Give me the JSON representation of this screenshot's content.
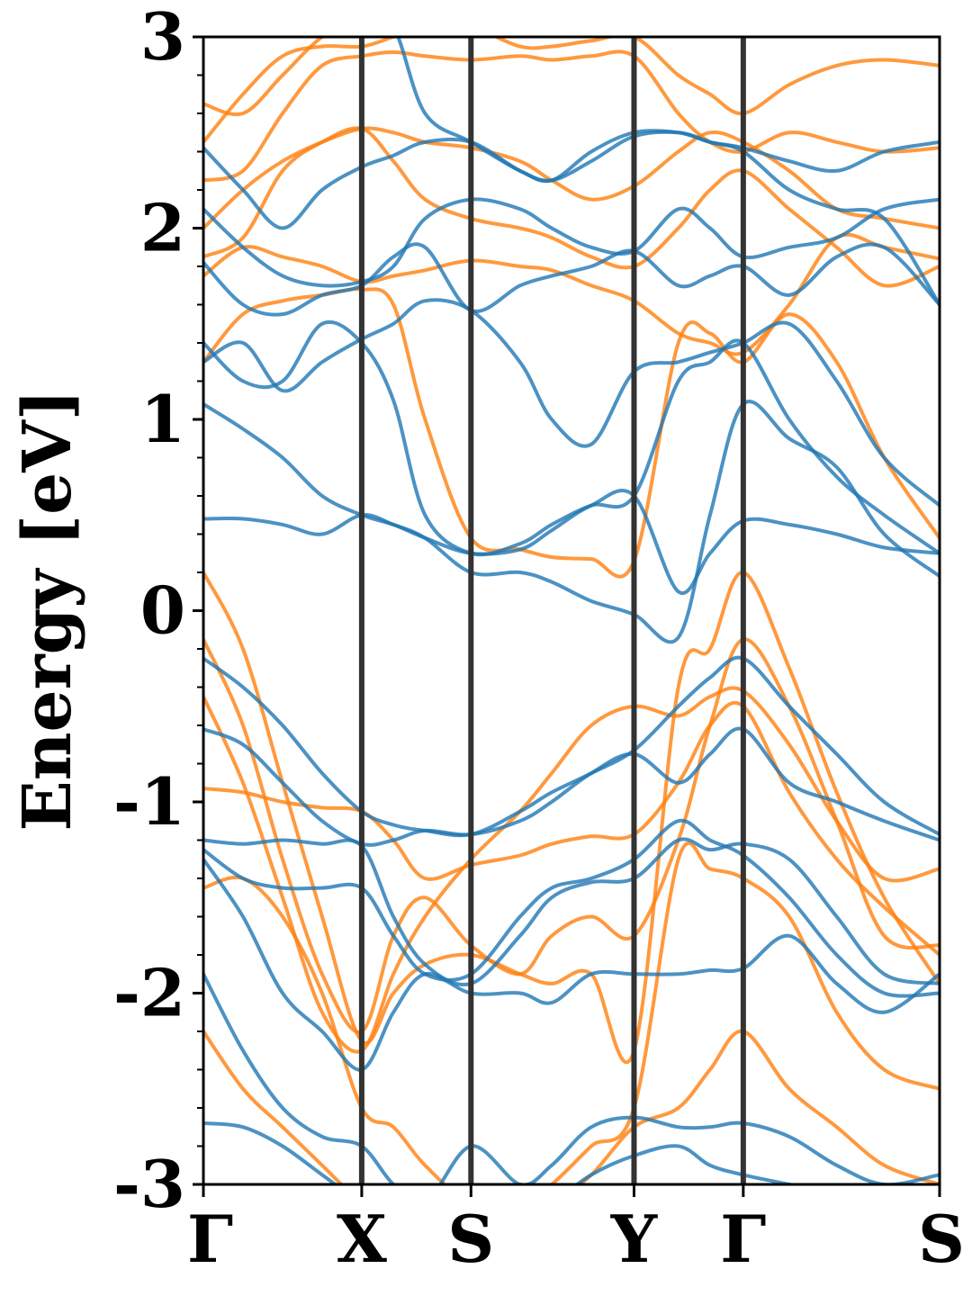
{
  "chart_data": {
    "type": "line",
    "title": "",
    "xlabel": "",
    "ylabel": "Energy [eV]",
    "ylim": [
      -3,
      3
    ],
    "y_ticks": [
      "-3",
      "-2",
      "-1",
      "0",
      "1",
      "2",
      "3"
    ],
    "y_minor_step": 0.2,
    "k_points": [
      {
        "label": "Γ",
        "x": 0.0
      },
      {
        "label": "X",
        "x": 1.0
      },
      {
        "label": "S",
        "x": 1.69
      },
      {
        "label": "Y",
        "x": 2.72
      },
      {
        "label": "Γ",
        "x": 3.41
      },
      {
        "label": "S",
        "x": 4.65
      }
    ],
    "grid": false,
    "legend": "none",
    "colors": {
      "spin_up": "#1f77b4",
      "spin_down": "#ff7f0e",
      "kline": "#333333"
    },
    "series": [
      {
        "color": "#ff7f0e",
        "x": [
          0,
          0.25,
          0.5,
          0.75,
          1.0,
          1.2,
          1.4,
          1.69,
          2.0,
          2.2,
          2.45,
          2.72,
          3.0,
          3.2,
          3.41,
          3.7,
          4.0,
          4.3,
          4.65
        ],
        "y": [
          0.2,
          -0.2,
          -0.9,
          -1.6,
          -2.25,
          -2.0,
          -1.85,
          -1.8,
          -1.9,
          -1.95,
          -1.9,
          -2.3,
          -0.4,
          -0.2,
          0.2,
          -0.3,
          -0.95,
          -1.5,
          -1.95
        ]
      },
      {
        "color": "#ff7f0e",
        "x": [
          0,
          0.25,
          0.5,
          0.75,
          1.0,
          1.2,
          1.4,
          1.69,
          2.0,
          2.2,
          2.45,
          2.72,
          3.0,
          3.2,
          3.41,
          3.7,
          4.0,
          4.3,
          4.65
        ],
        "y": [
          -0.15,
          -0.6,
          -1.3,
          -1.9,
          -2.2,
          -1.7,
          -1.5,
          -1.75,
          -1.9,
          -1.7,
          -1.6,
          -1.7,
          -1.2,
          -0.6,
          -0.15,
          -0.5,
          -1.1,
          -1.7,
          -1.75
        ]
      },
      {
        "color": "#ff7f0e",
        "x": [
          0,
          0.25,
          0.5,
          0.75,
          1.0,
          1.2,
          1.4,
          1.69,
          2.0,
          2.2,
          2.45,
          2.72,
          3.0,
          3.2,
          3.41,
          3.7,
          4.0,
          4.3,
          4.65
        ],
        "y": [
          -0.45,
          -0.9,
          -1.5,
          -2.1,
          -2.3,
          -1.9,
          -1.6,
          -1.3,
          -1.05,
          -0.85,
          -0.6,
          -0.5,
          -0.55,
          -0.45,
          -0.42,
          -0.7,
          -1.1,
          -1.4,
          -1.35
        ]
      },
      {
        "color": "#ff7f0e",
        "x": [
          0,
          0.25,
          0.5,
          0.75,
          1.0,
          1.2,
          1.4,
          1.69,
          2.0,
          2.2,
          2.45,
          2.72,
          3.0,
          3.2,
          3.41,
          3.7,
          4.0,
          4.3,
          4.65
        ],
        "y": [
          -0.93,
          -0.95,
          -1.0,
          -1.03,
          -1.05,
          -1.2,
          -1.4,
          -1.33,
          -1.28,
          -1.22,
          -1.18,
          -1.17,
          -0.9,
          -0.6,
          -0.5,
          -0.95,
          -1.3,
          -1.55,
          -1.8
        ]
      },
      {
        "color": "#ff7f0e",
        "x": [
          0,
          0.25,
          0.5,
          0.75,
          1.0,
          1.2,
          1.4,
          1.69,
          2.0,
          2.2,
          2.45,
          2.72,
          3.0,
          3.2,
          3.41,
          3.7,
          4.0,
          4.3,
          4.65
        ],
        "y": [
          -1.45,
          -1.4,
          -1.6,
          -2.0,
          -2.6,
          -2.7,
          -2.9,
          -3.1,
          -3.1,
          -3.0,
          -2.8,
          -2.6,
          -1.3,
          -1.35,
          -1.4,
          -1.6,
          -2.1,
          -2.4,
          -2.5
        ]
      },
      {
        "color": "#ff7f0e",
        "x": [
          0,
          0.25,
          0.5,
          0.75,
          1.0,
          1.2,
          1.4,
          1.69,
          2.0,
          2.2,
          2.45,
          2.72,
          3.0,
          3.2,
          3.41,
          3.7,
          4.0,
          4.3,
          4.65
        ],
        "y": [
          -2.2,
          -2.5,
          -2.7,
          -2.9,
          -3.1,
          -3.2,
          -3.3,
          -3.3,
          -3.2,
          -3.1,
          -2.95,
          -2.7,
          -2.6,
          -2.4,
          -2.2,
          -2.5,
          -2.7,
          -2.9,
          -3.0
        ]
      },
      {
        "color": "#ff7f0e",
        "x": [
          0,
          0.25,
          0.5,
          0.75,
          1.0,
          1.2,
          1.4,
          1.69,
          2.0,
          2.2,
          2.45,
          2.72,
          3.0,
          3.2,
          3.41,
          3.7,
          4.0,
          4.3,
          4.65
        ],
        "y": [
          1.3,
          1.55,
          1.62,
          1.65,
          1.68,
          1.6,
          1.0,
          0.38,
          0.32,
          0.28,
          0.27,
          0.26,
          1.4,
          1.45,
          1.3,
          1.55,
          1.3,
          0.8,
          0.38
        ]
      },
      {
        "color": "#ff7f0e",
        "x": [
          0,
          0.25,
          0.5,
          0.75,
          1.0,
          1.2,
          1.4,
          1.69,
          2.0,
          2.2,
          2.45,
          2.72,
          3.0,
          3.2,
          3.41,
          3.7,
          4.0,
          4.3,
          4.65
        ],
        "y": [
          1.75,
          1.9,
          1.85,
          1.8,
          1.72,
          1.75,
          1.78,
          1.83,
          1.8,
          1.78,
          1.7,
          1.62,
          1.45,
          1.4,
          1.35,
          1.6,
          1.95,
          1.9,
          1.84
        ]
      },
      {
        "color": "#ff7f0e",
        "x": [
          0,
          0.25,
          0.5,
          0.75,
          1.0,
          1.2,
          1.4,
          1.69,
          2.0,
          2.2,
          2.45,
          2.72,
          3.0,
          3.2,
          3.41,
          3.7,
          4.0,
          4.3,
          4.65
        ],
        "y": [
          1.85,
          1.95,
          2.3,
          2.45,
          2.52,
          2.35,
          2.15,
          2.05,
          2.0,
          1.95,
          1.85,
          1.8,
          2.0,
          2.2,
          2.3,
          2.1,
          1.9,
          1.7,
          1.8
        ]
      },
      {
        "color": "#ff7f0e",
        "x": [
          0,
          0.25,
          0.5,
          0.75,
          1.0,
          1.2,
          1.4,
          1.69,
          2.0,
          2.2,
          2.45,
          2.72,
          3.0,
          3.2,
          3.41,
          3.7,
          4.0,
          4.3,
          4.65
        ],
        "y": [
          2.0,
          2.2,
          2.35,
          2.45,
          2.52,
          2.5,
          2.45,
          2.42,
          2.35,
          2.25,
          2.15,
          2.22,
          2.4,
          2.5,
          2.45,
          2.3,
          2.1,
          2.05,
          2.0
        ]
      },
      {
        "color": "#ff7f0e",
        "x": [
          0,
          0.25,
          0.5,
          0.75,
          1.0,
          1.2,
          1.4,
          1.69,
          2.0,
          2.2,
          2.45,
          2.72,
          3.0,
          3.2,
          3.41,
          3.7,
          4.0,
          4.3,
          4.65
        ],
        "y": [
          2.25,
          2.3,
          2.6,
          2.85,
          2.9,
          2.92,
          2.9,
          2.88,
          2.9,
          2.88,
          2.9,
          2.9,
          2.6,
          2.45,
          2.4,
          2.5,
          2.45,
          2.4,
          2.42
        ]
      },
      {
        "color": "#ff7f0e",
        "x": [
          0,
          0.25,
          0.5,
          0.75,
          1.0,
          1.2,
          1.4,
          1.69,
          2.0,
          2.2,
          2.45,
          2.72,
          3.0,
          3.2,
          3.41,
          3.7,
          4.0,
          4.3,
          4.65
        ],
        "y": [
          2.45,
          2.7,
          2.9,
          2.95,
          2.95,
          3.0,
          3.05,
          3.05,
          2.95,
          2.95,
          2.98,
          3.0,
          2.8,
          2.7,
          2.6,
          2.75,
          2.85,
          2.88,
          2.85
        ]
      },
      {
        "color": "#ff7f0e",
        "x": [
          0,
          0.25,
          0.5,
          0.75,
          1.0
        ],
        "y": [
          2.65,
          2.6,
          2.8,
          3.0,
          3.1
        ]
      },
      {
        "color": "#1f77b4",
        "x": [
          0,
          0.25,
          0.5,
          0.75,
          1.0,
          1.2,
          1.4,
          1.69,
          2.0,
          2.2,
          2.45,
          2.72,
          3.0,
          3.2,
          3.41,
          3.7,
          4.0,
          4.3,
          4.65
        ],
        "y": [
          0.48,
          0.48,
          0.45,
          0.4,
          0.5,
          0.45,
          0.38,
          0.3,
          0.32,
          0.42,
          0.55,
          0.6,
          0.1,
          0.3,
          0.47,
          0.45,
          0.4,
          0.33,
          0.3
        ]
      },
      {
        "color": "#1f77b4",
        "x": [
          0,
          0.25,
          0.5,
          0.75,
          1.0,
          1.2,
          1.4,
          1.69,
          2.0,
          2.2,
          2.45,
          2.72,
          3.0,
          3.2,
          3.41,
          3.7,
          4.0,
          4.3,
          4.65
        ],
        "y": [
          1.08,
          0.95,
          0.8,
          0.6,
          0.5,
          0.45,
          0.38,
          0.2,
          0.2,
          0.15,
          0.05,
          -0.02,
          -0.14,
          0.5,
          1.08,
          0.9,
          0.75,
          0.4,
          0.18
        ]
      },
      {
        "color": "#1f77b4",
        "x": [
          0,
          0.25,
          0.5,
          0.75,
          1.0,
          1.2,
          1.4,
          1.69,
          2.0,
          2.2,
          2.45,
          2.72,
          3.0,
          3.2,
          3.41,
          3.7,
          4.0,
          4.3,
          4.65
        ],
        "y": [
          1.4,
          1.2,
          1.2,
          1.5,
          1.4,
          1.1,
          0.5,
          0.3,
          0.35,
          0.45,
          0.55,
          0.6,
          1.2,
          1.3,
          1.4,
          1.0,
          0.7,
          0.5,
          0.3
        ]
      },
      {
        "color": "#1f77b4",
        "x": [
          0,
          0.25,
          0.5,
          0.75,
          1.0,
          1.2,
          1.4,
          1.69,
          2.0,
          2.2,
          2.45,
          2.72,
          3.0,
          3.2,
          3.41,
          3.7,
          4.0,
          4.3,
          4.65
        ],
        "y": [
          1.3,
          1.4,
          1.15,
          1.3,
          1.42,
          1.5,
          1.62,
          1.57,
          1.3,
          1.0,
          0.87,
          1.25,
          1.3,
          1.35,
          1.4,
          1.5,
          1.2,
          0.8,
          0.55
        ]
      },
      {
        "color": "#1f77b4",
        "x": [
          0,
          0.25,
          0.5,
          0.75,
          1.0,
          1.2,
          1.4,
          1.69,
          2.0,
          2.2,
          2.45,
          2.72,
          3.0,
          3.2,
          3.41,
          3.7,
          4.0,
          4.3,
          4.65
        ],
        "y": [
          1.82,
          1.6,
          1.55,
          1.65,
          1.7,
          1.85,
          1.9,
          1.57,
          1.7,
          1.75,
          1.8,
          1.88,
          1.7,
          1.75,
          1.8,
          1.65,
          1.85,
          1.9,
          1.6
        ]
      },
      {
        "color": "#1f77b4",
        "x": [
          0,
          0.25,
          0.5,
          0.75,
          1.0,
          1.2,
          1.4,
          1.69,
          2.0,
          2.2,
          2.45,
          2.72,
          3.0,
          3.2,
          3.41,
          3.7,
          4.0,
          4.3,
          4.65
        ],
        "y": [
          2.1,
          1.9,
          1.75,
          1.7,
          1.72,
          1.8,
          2.05,
          2.15,
          2.1,
          2.0,
          1.9,
          1.88,
          2.1,
          2.0,
          1.85,
          1.9,
          1.95,
          2.1,
          2.15
        ]
      },
      {
        "color": "#1f77b4",
        "x": [
          0,
          0.25,
          0.5,
          0.75,
          1.0,
          1.2,
          1.4,
          1.69,
          2.0,
          2.2,
          2.45,
          2.72,
          3.0,
          3.2,
          3.41,
          3.7,
          4.0,
          4.3,
          4.65
        ],
        "y": [
          2.42,
          2.2,
          2.0,
          2.2,
          2.32,
          2.38,
          2.45,
          2.45,
          2.3,
          2.25,
          2.4,
          2.5,
          2.5,
          2.45,
          2.42,
          2.35,
          2.3,
          2.4,
          2.45
        ]
      },
      {
        "color": "#1f77b4",
        "x": [
          0,
          0.25,
          0.5,
          0.75,
          1.0,
          1.2,
          1.4,
          1.69,
          2.0,
          2.2,
          2.45,
          2.72,
          3.0,
          3.2,
          3.41,
          3.7,
          4.0,
          4.3,
          4.65
        ],
        "y": [
          3.1,
          3.1,
          3.05,
          3.1,
          3.1,
          3.05,
          2.6,
          2.45,
          2.3,
          2.25,
          2.35,
          2.48,
          2.5,
          2.45,
          2.4,
          2.2,
          2.1,
          2.05,
          1.6
        ]
      },
      {
        "color": "#1f77b4",
        "x": [
          0,
          0.25,
          0.5,
          0.75,
          1.0,
          1.2,
          1.4,
          1.69,
          2.0,
          2.2,
          2.45,
          2.72,
          3.0,
          3.2,
          3.41,
          3.7,
          4.0,
          4.3,
          4.65
        ],
        "y": [
          -0.25,
          -0.4,
          -0.6,
          -0.85,
          -1.05,
          -1.12,
          -1.15,
          -1.17,
          -1.05,
          -0.95,
          -0.85,
          -0.73,
          -0.5,
          -0.35,
          -0.25,
          -0.5,
          -0.75,
          -1.0,
          -1.17
        ]
      },
      {
        "color": "#1f77b4",
        "x": [
          0,
          0.25,
          0.5,
          0.75,
          1.0,
          1.2,
          1.4,
          1.69,
          2.0,
          2.2,
          2.45,
          2.72,
          3.0,
          3.2,
          3.41,
          3.7,
          4.0,
          4.3,
          4.65
        ],
        "y": [
          -0.62,
          -0.7,
          -0.9,
          -1.1,
          -1.22,
          -1.2,
          -1.15,
          -1.17,
          -1.1,
          -1.0,
          -0.85,
          -0.75,
          -0.9,
          -0.75,
          -0.62,
          -0.9,
          -1.0,
          -1.1,
          -1.2
        ]
      },
      {
        "color": "#1f77b4",
        "x": [
          0,
          0.25,
          0.5,
          0.75,
          1.0,
          1.2,
          1.4,
          1.69,
          2.0,
          2.2,
          2.45,
          2.72,
          3.0,
          3.2,
          3.41,
          3.7,
          4.0,
          4.3,
          4.65
        ],
        "y": [
          -1.2,
          -1.22,
          -1.2,
          -1.22,
          -1.23,
          -1.6,
          -1.85,
          -1.95,
          -1.7,
          -1.5,
          -1.42,
          -1.4,
          -1.2,
          -1.25,
          -1.22,
          -1.3,
          -1.6,
          -1.9,
          -1.95
        ]
      },
      {
        "color": "#1f77b4",
        "x": [
          0,
          0.25,
          0.5,
          0.75,
          1.0,
          1.2,
          1.4,
          1.69,
          2.0,
          2.2,
          2.45,
          2.72,
          3.0,
          3.2,
          3.41,
          3.7,
          4.0,
          4.3,
          4.65
        ],
        "y": [
          -1.25,
          -1.4,
          -1.45,
          -1.45,
          -1.45,
          -1.7,
          -1.9,
          -1.9,
          -1.6,
          -1.45,
          -1.4,
          -1.3,
          -1.1,
          -1.2,
          -1.28,
          -1.5,
          -1.8,
          -2.0,
          -2.0
        ]
      },
      {
        "color": "#1f77b4",
        "x": [
          0,
          0.25,
          0.5,
          0.75,
          1.0,
          1.2,
          1.4,
          1.69,
          2.0,
          2.2,
          2.45,
          2.72,
          3.0,
          3.2,
          3.41,
          3.7,
          4.0,
          4.3,
          4.65
        ],
        "y": [
          -1.3,
          -1.6,
          -2.0,
          -2.2,
          -2.4,
          -2.1,
          -1.9,
          -2.0,
          -2.0,
          -2.05,
          -1.9,
          -1.9,
          -1.9,
          -1.88,
          -1.87,
          -1.7,
          -1.95,
          -2.1,
          -1.9
        ]
      },
      {
        "color": "#1f77b4",
        "x": [
          0,
          0.25,
          0.5,
          0.75,
          1.0,
          1.2,
          1.4,
          1.69,
          2.0,
          2.2,
          2.45,
          2.72,
          3.0,
          3.2,
          3.41,
          3.7,
          4.0,
          4.3,
          4.65
        ],
        "y": [
          -1.9,
          -2.3,
          -2.6,
          -2.75,
          -2.8,
          -3.0,
          -3.1,
          -2.8,
          -3.0,
          -2.9,
          -2.7,
          -2.65,
          -2.7,
          -2.7,
          -2.68,
          -2.75,
          -2.9,
          -3.0,
          -2.95
        ]
      },
      {
        "color": "#1f77b4",
        "x": [
          0,
          0.25,
          0.5,
          0.75,
          1.0,
          1.2,
          1.4,
          1.69,
          2.0,
          2.2,
          2.45,
          2.72,
          3.0,
          3.2,
          3.41,
          3.7,
          4.0,
          4.3,
          4.65
        ],
        "y": [
          -2.68,
          -2.7,
          -2.8,
          -2.95,
          -3.1,
          -3.2,
          -3.3,
          -3.3,
          -3.2,
          -3.1,
          -2.95,
          -2.85,
          -2.8,
          -2.9,
          -2.95,
          -3.0,
          -3.05,
          -3.1,
          -3.05
        ]
      }
    ]
  }
}
